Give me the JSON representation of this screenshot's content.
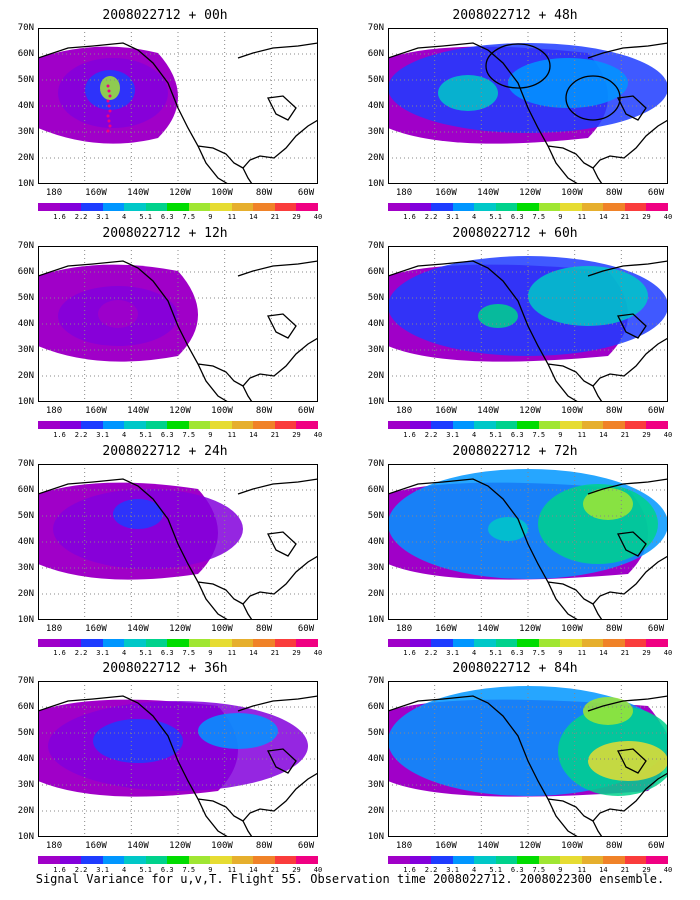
{
  "axes": {
    "lat_labels": [
      "70N",
      "60N",
      "50N",
      "40N",
      "30N",
      "20N",
      "10N"
    ],
    "lon_labels": [
      "180",
      "160W",
      "140W",
      "120W",
      "100W",
      "80W",
      "60W"
    ]
  },
  "colorbar": {
    "labels": [
      "1.6",
      "2.2",
      "3.1",
      "4",
      "5.1",
      "6.3",
      "7.5",
      "9",
      "11",
      "14",
      "21",
      "29",
      "40"
    ],
    "colors": [
      "#a000c8",
      "#8200dc",
      "#1e3cff",
      "#0096ff",
      "#00c8c8",
      "#00d28c",
      "#00dc00",
      "#a0e632",
      "#e6dc32",
      "#e6af2d",
      "#f08228",
      "#fa3c3c",
      "#f00082"
    ]
  },
  "panels": [
    {
      "id": "p00",
      "title": "2008022712 + 00h",
      "intensity": 0
    },
    {
      "id": "p12",
      "title": "2008022712 + 12h",
      "intensity": 1
    },
    {
      "id": "p24",
      "title": "2008022712 + 24h",
      "intensity": 2
    },
    {
      "id": "p36",
      "title": "2008022712 + 36h",
      "intensity": 3
    },
    {
      "id": "p48",
      "title": "2008022712 + 48h",
      "intensity": 4
    },
    {
      "id": "p60",
      "title": "2008022712 + 60h",
      "intensity": 5
    },
    {
      "id": "p72",
      "title": "2008022712 + 72h",
      "intensity": 6
    },
    {
      "id": "p84",
      "title": "2008022712 + 84h",
      "intensity": 7
    }
  ],
  "caption": "Signal Variance for u,v,T. Flight 55. Observation time 2008022712. 2008022300 ensemble."
}
